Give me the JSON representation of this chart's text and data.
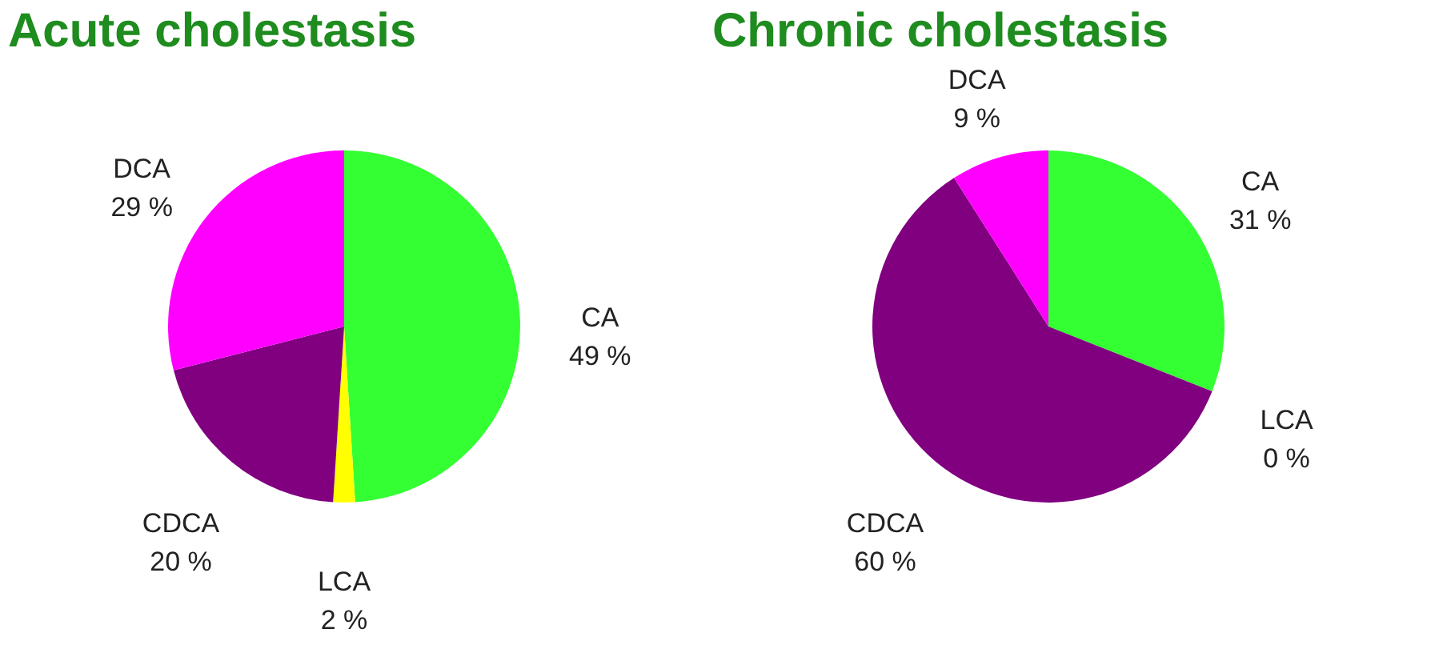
{
  "chart_data": [
    {
      "type": "pie",
      "title": "Acute cholestasis",
      "categories": [
        "CA",
        "LCA",
        "CDCA",
        "DCA"
      ],
      "values": [
        49,
        2,
        20,
        29
      ],
      "value_labels": [
        "49 %",
        "2 %",
        "20 %",
        "29 %"
      ],
      "colors": [
        "#33ff33",
        "#ffff00",
        "#800080",
        "#ff00ff"
      ],
      "legend": false
    },
    {
      "type": "pie",
      "title": "Chronic cholestasis",
      "categories": [
        "CA",
        "LCA",
        "CDCA",
        "DCA"
      ],
      "values": [
        31,
        0,
        60,
        9
      ],
      "value_labels": [
        "31 %",
        "0 %",
        "60 %",
        "9 %"
      ],
      "colors": [
        "#33ff33",
        "#ffff00",
        "#800080",
        "#ff00ff"
      ],
      "legend": false
    }
  ]
}
